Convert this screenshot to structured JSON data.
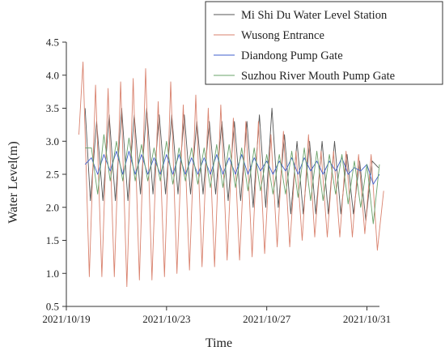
{
  "chart_data": {
    "type": "line",
    "title": "",
    "xlabel": "Time",
    "ylabel": "Water Level(m)",
    "x_range": [
      "2021/10/19",
      "2021/10/31 12:00"
    ],
    "ylim": [
      0.5,
      4.5
    ],
    "y_ticks": [
      "0.5",
      "1.0",
      "1.5",
      "2.0",
      "2.5",
      "3.0",
      "3.5",
      "4.0",
      "4.5"
    ],
    "x_ticks": [
      {
        "date": "2021/10/19",
        "label": "2021/10/19"
      },
      {
        "date": "2021/10/23",
        "label": "2021/10/23"
      },
      {
        "date": "2021/10/27",
        "label": "2021/10/27"
      },
      {
        "date": "2021/10/31",
        "label": "2021/10/31"
      }
    ],
    "grid": false,
    "legend_position": "top-right",
    "series": [
      {
        "name": "Mi Shi Du Water Level Station",
        "color": "#555555",
        "x": [
          "2021/10/19 18:00",
          "2021/10/19 23:00",
          "2021/10/20 05:00",
          "2021/10/20 11:00",
          "2021/10/20 17:00",
          "2021/10/20 23:00",
          "2021/10/21 05:00",
          "2021/10/21 11:00",
          "2021/10/21 17:00",
          "2021/10/21 23:00",
          "2021/10/22 05:00",
          "2021/10/22 11:00",
          "2021/10/22 17:00",
          "2021/10/22 23:00",
          "2021/10/23 05:00",
          "2021/10/23 11:00",
          "2021/10/23 17:00",
          "2021/10/23 23:00",
          "2021/10/24 05:00",
          "2021/10/24 11:00",
          "2021/10/24 17:00",
          "2021/10/24 23:00",
          "2021/10/25 05:00",
          "2021/10/25 11:00",
          "2021/10/25 17:00",
          "2021/10/25 23:00",
          "2021/10/26 05:00",
          "2021/10/26 11:00",
          "2021/10/26 17:00",
          "2021/10/26 23:00",
          "2021/10/27 05:00",
          "2021/10/27 11:00",
          "2021/10/27 17:00",
          "2021/10/27 23:00",
          "2021/10/28 05:00",
          "2021/10/28 11:00",
          "2021/10/28 17:00",
          "2021/10/28 23:00",
          "2021/10/29 05:00",
          "2021/10/29 11:00",
          "2021/10/29 17:00",
          "2021/10/29 23:00",
          "2021/10/30 05:00",
          "2021/10/30 11:00",
          "2021/10/30 17:00",
          "2021/10/30 23:00",
          "2021/10/31 05:00",
          "2021/10/31 11:00"
        ],
        "y": [
          3.5,
          2.1,
          3.3,
          2.1,
          3.4,
          2.1,
          3.5,
          2.1,
          3.4,
          2.2,
          3.5,
          2.2,
          3.4,
          2.2,
          3.4,
          2.2,
          3.4,
          2.2,
          3.3,
          2.2,
          3.3,
          2.2,
          3.3,
          2.1,
          3.3,
          2.1,
          3.3,
          2.0,
          3.4,
          2.0,
          3.5,
          2.0,
          3.1,
          1.9,
          3.0,
          1.9,
          3.0,
          1.9,
          3.0,
          1.9,
          3.0,
          1.9,
          2.8,
          1.9,
          2.7,
          1.8,
          2.7,
          2.6
        ]
      },
      {
        "name": "Wusong Entrance",
        "color": "#d9826e",
        "x": [
          "2021/10/19 12:00",
          "2021/10/19 16:00",
          "2021/10/19 22:00",
          "2021/10/20 04:00",
          "2021/10/20 10:00",
          "2021/10/20 16:00",
          "2021/10/20 22:00",
          "2021/10/21 04:00",
          "2021/10/21 10:00",
          "2021/10/21 16:00",
          "2021/10/21 22:00",
          "2021/10/22 04:00",
          "2021/10/22 10:00",
          "2021/10/22 16:00",
          "2021/10/22 22:00",
          "2021/10/23 04:00",
          "2021/10/23 10:00",
          "2021/10/23 16:00",
          "2021/10/23 22:00",
          "2021/10/24 04:00",
          "2021/10/24 10:00",
          "2021/10/24 16:00",
          "2021/10/24 22:00",
          "2021/10/25 04:00",
          "2021/10/25 10:00",
          "2021/10/25 16:00",
          "2021/10/25 22:00",
          "2021/10/26 04:00",
          "2021/10/26 10:00",
          "2021/10/26 16:00",
          "2021/10/26 22:00",
          "2021/10/27 04:00",
          "2021/10/27 10:00",
          "2021/10/27 16:00",
          "2021/10/27 22:00",
          "2021/10/28 04:00",
          "2021/10/28 10:00",
          "2021/10/28 16:00",
          "2021/10/28 22:00",
          "2021/10/29 04:00",
          "2021/10/29 10:00",
          "2021/10/29 16:00",
          "2021/10/29 22:00",
          "2021/10/30 04:00",
          "2021/10/30 10:00",
          "2021/10/30 16:00",
          "2021/10/30 22:00",
          "2021/10/31 04:00",
          "2021/10/31 10:00",
          "2021/10/31 16:00"
        ],
        "y": [
          3.1,
          4.2,
          0.95,
          3.85,
          0.95,
          3.8,
          0.95,
          3.9,
          0.8,
          3.95,
          0.9,
          4.1,
          0.9,
          3.6,
          0.95,
          3.9,
          1.0,
          3.55,
          1.05,
          3.7,
          1.1,
          3.5,
          1.1,
          3.55,
          1.2,
          3.35,
          1.2,
          3.3,
          1.25,
          3.3,
          1.3,
          3.1,
          1.4,
          3.15,
          1.4,
          2.85,
          1.5,
          3.1,
          1.55,
          2.85,
          1.55,
          2.85,
          1.55,
          2.85,
          1.55,
          2.8,
          1.6,
          2.8,
          1.35,
          2.25
        ]
      },
      {
        "name": "Diandong Pump Gate",
        "color": "#3f5fcc",
        "x": [
          "2021/10/19 18:00",
          "2021/10/20 00:00",
          "2021/10/20 06:00",
          "2021/10/20 12:00",
          "2021/10/20 18:00",
          "2021/10/21 00:00",
          "2021/10/21 06:00",
          "2021/10/21 12:00",
          "2021/10/21 18:00",
          "2021/10/22 00:00",
          "2021/10/22 06:00",
          "2021/10/22 12:00",
          "2021/10/22 18:00",
          "2021/10/23 00:00",
          "2021/10/23 06:00",
          "2021/10/23 12:00",
          "2021/10/23 18:00",
          "2021/10/24 00:00",
          "2021/10/24 06:00",
          "2021/10/24 12:00",
          "2021/10/24 18:00",
          "2021/10/25 00:00",
          "2021/10/25 06:00",
          "2021/10/25 12:00",
          "2021/10/25 18:00",
          "2021/10/26 00:00",
          "2021/10/26 06:00",
          "2021/10/26 12:00",
          "2021/10/26 18:00",
          "2021/10/27 00:00",
          "2021/10/27 06:00",
          "2021/10/27 12:00",
          "2021/10/27 18:00",
          "2021/10/28 00:00",
          "2021/10/28 06:00",
          "2021/10/28 12:00",
          "2021/10/28 18:00",
          "2021/10/29 00:00",
          "2021/10/29 06:00",
          "2021/10/29 12:00",
          "2021/10/29 18:00",
          "2021/10/30 00:00",
          "2021/10/30 06:00",
          "2021/10/30 12:00",
          "2021/10/30 18:00",
          "2021/10/31 00:00",
          "2021/10/31 06:00",
          "2021/10/31 12:00"
        ],
        "y": [
          2.65,
          2.75,
          2.5,
          2.8,
          2.55,
          2.85,
          2.5,
          2.85,
          2.5,
          2.8,
          2.5,
          2.75,
          2.5,
          2.8,
          2.5,
          2.8,
          2.5,
          2.75,
          2.5,
          2.75,
          2.5,
          2.8,
          2.5,
          2.75,
          2.5,
          2.8,
          2.5,
          2.75,
          2.55,
          2.7,
          2.5,
          2.7,
          2.55,
          2.75,
          2.5,
          2.75,
          2.55,
          2.7,
          2.5,
          2.7,
          2.55,
          2.75,
          2.5,
          2.6,
          2.55,
          2.65,
          2.35,
          2.5
        ]
      },
      {
        "name": "Suzhou River Mouth Pump Gate",
        "color": "#6aa36a",
        "x": [
          "2021/10/19 18:00",
          "2021/10/20 00:00",
          "2021/10/20 06:00",
          "2021/10/20 12:00",
          "2021/10/20 18:00",
          "2021/10/21 00:00",
          "2021/10/21 06:00",
          "2021/10/21 12:00",
          "2021/10/21 18:00",
          "2021/10/22 00:00",
          "2021/10/22 06:00",
          "2021/10/22 12:00",
          "2021/10/22 18:00",
          "2021/10/23 00:00",
          "2021/10/23 06:00",
          "2021/10/23 12:00",
          "2021/10/23 18:00",
          "2021/10/24 00:00",
          "2021/10/24 06:00",
          "2021/10/24 12:00",
          "2021/10/24 18:00",
          "2021/10/25 00:00",
          "2021/10/25 06:00",
          "2021/10/25 12:00",
          "2021/10/25 18:00",
          "2021/10/26 00:00",
          "2021/10/26 06:00",
          "2021/10/26 12:00",
          "2021/10/26 18:00",
          "2021/10/27 00:00",
          "2021/10/27 06:00",
          "2021/10/27 12:00",
          "2021/10/27 18:00",
          "2021/10/28 00:00",
          "2021/10/28 06:00",
          "2021/10/28 12:00",
          "2021/10/28 18:00",
          "2021/10/29 00:00",
          "2021/10/29 06:00",
          "2021/10/29 12:00",
          "2021/10/29 18:00",
          "2021/10/30 00:00",
          "2021/10/30 06:00",
          "2021/10/30 12:00",
          "2021/10/30 18:00",
          "2021/10/31 00:00",
          "2021/10/31 06:00",
          "2021/10/31 12:00"
        ],
        "y": [
          2.9,
          2.9,
          2.2,
          3.1,
          2.4,
          3.0,
          2.4,
          3.05,
          2.4,
          2.95,
          2.4,
          2.9,
          2.4,
          3.0,
          2.35,
          2.9,
          2.4,
          2.9,
          2.35,
          2.9,
          2.3,
          2.95,
          2.3,
          2.95,
          2.3,
          2.9,
          2.25,
          2.9,
          2.25,
          2.8,
          2.2,
          2.8,
          2.2,
          2.85,
          2.15,
          2.9,
          2.1,
          2.85,
          2.1,
          2.8,
          2.2,
          2.8,
          2.05,
          2.7,
          2.0,
          2.65,
          1.75,
          2.65
        ]
      }
    ]
  }
}
